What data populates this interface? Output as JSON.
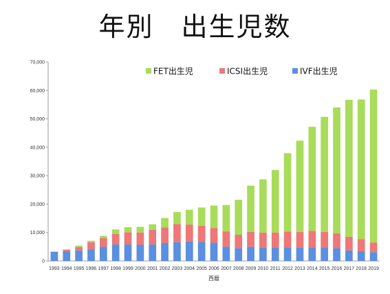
{
  "title": "年別　出生児数",
  "chart_data": {
    "type": "bar",
    "stacked": true,
    "title": "年別　出生児数",
    "xlabel": "西暦",
    "ylabel": "",
    "ylim": [
      0,
      70000
    ],
    "yticks": [
      "0",
      "10,000",
      "20,000",
      "30,000",
      "40,000",
      "50,000",
      "60,000",
      "70,000"
    ],
    "grid": false,
    "legend_position": "top-right",
    "categories": [
      "1993",
      "1994",
      "1995",
      "1996",
      "1997",
      "1998",
      "1999",
      "2000",
      "2001",
      "2002",
      "2003",
      "2004",
      "2005",
      "2006",
      "2007",
      "2008",
      "2009",
      "2010",
      "2011",
      "2012",
      "2013",
      "2014",
      "2015",
      "2016",
      "2017",
      "2018",
      "2019"
    ],
    "series": [
      {
        "name": "IVF出生児",
        "color": "#5b8fe0",
        "values": [
          3200,
          3400,
          3700,
          4000,
          5000,
          5800,
          5800,
          5700,
          5800,
          6300,
          6600,
          6800,
          6700,
          6400,
          5000,
          4500,
          5000,
          4700,
          4600,
          4800,
          4700,
          4800,
          4800,
          4500,
          3700,
          3400,
          3100
        ]
      },
      {
        "name": "ICSI出生児",
        "color": "#ee7777",
        "values": [
          100,
          600,
          1200,
          2600,
          3000,
          3700,
          4300,
          4300,
          5100,
          5500,
          6400,
          6000,
          5700,
          5200,
          5400,
          4700,
          5200,
          5300,
          5400,
          5500,
          5500,
          5800,
          5400,
          5200,
          4800,
          4300,
          3400
        ]
      },
      {
        "name": "FET出生児",
        "color": "#a8dc5a",
        "values": [
          0,
          0,
          500,
          500,
          800,
          1600,
          1800,
          2000,
          2000,
          3300,
          4200,
          5200,
          6400,
          7900,
          9300,
          12300,
          16300,
          18700,
          22000,
          27600,
          32100,
          36600,
          40500,
          44300,
          48200,
          49100,
          53800
        ]
      }
    ]
  }
}
